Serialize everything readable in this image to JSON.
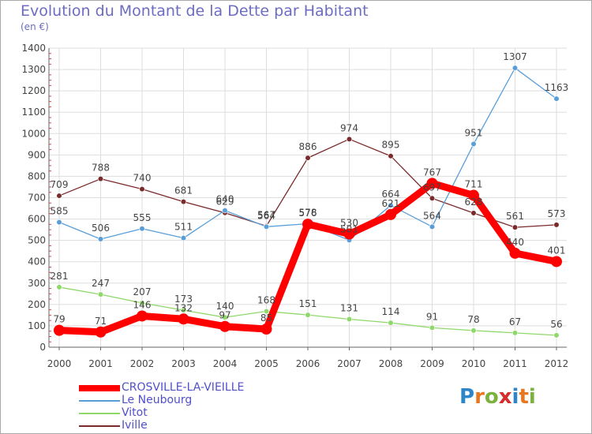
{
  "header": {
    "title": "Evolution du Montant de la Dette par Habitant",
    "subtitle": "(en €)"
  },
  "brand": {
    "letters": [
      "P",
      "r",
      "o",
      "x",
      "i",
      "t",
      "i"
    ],
    "colors": [
      "#2e86c8",
      "#e87722",
      "#7bb13c",
      "#d62c2c",
      "#2e86c8",
      "#e87722",
      "#7bb13c"
    ]
  },
  "chart_data": {
    "type": "line",
    "title": "Evolution du Montant de la Dette par Habitant",
    "subtitle": "(en €)",
    "xlabel": "",
    "ylabel": "",
    "x": [
      "2000",
      "2001",
      "2002",
      "2003",
      "2004",
      "2005",
      "2006",
      "2007",
      "2008",
      "2009",
      "2010",
      "2011",
      "2012"
    ],
    "ylim": [
      0,
      1400
    ],
    "yticks": [
      "0",
      "100",
      "200",
      "300",
      "400",
      "500",
      "600",
      "700",
      "800",
      "900",
      "1000",
      "1100",
      "1200",
      "1300",
      "1400"
    ],
    "grid": true,
    "legend_position": "bottom-left",
    "series": [
      {
        "name": "Iville",
        "color": "#7a2a2a",
        "values": [
          709,
          788,
          740,
          681,
          629,
          567,
          886,
          974,
          895,
          697,
          628,
          561,
          573
        ],
        "labels": [
          "709",
          "788",
          "740",
          "681",
          "629",
          "567",
          "886",
          "974",
          "895",
          "697",
          "628",
          "561",
          "573"
        ]
      },
      {
        "name": "Vitot",
        "color": "#8fd86a",
        "values": [
          281,
          247,
          207,
          173,
          140,
          168,
          151,
          131,
          114,
          91,
          78,
          67,
          56
        ],
        "labels": [
          "281",
          "247",
          "207",
          "173",
          "140",
          "168",
          "151",
          "131",
          "114",
          "91",
          "78",
          "67",
          "56"
        ]
      },
      {
        "name": "Le Neubourg",
        "color": "#5a9ed8",
        "values": [
          585,
          506,
          555,
          511,
          640,
          564,
          578,
          501,
          664,
          564,
          951,
          1307,
          1163
        ],
        "labels": [
          "585",
          "506",
          "555",
          "511",
          "640",
          "564",
          "578",
          "501",
          "664",
          "564",
          "951",
          "1307",
          "1163"
        ]
      },
      {
        "name": "CROSVILLE-LA-VIEILLE",
        "color": "#ff0000",
        "values": [
          79,
          71,
          146,
          132,
          97,
          85,
          576,
          530,
          621,
          767,
          711,
          440,
          401
        ],
        "labels": [
          "79",
          "71",
          "146",
          "132",
          "97",
          "85",
          "576",
          "530",
          "621",
          "767",
          "711",
          "440",
          "401"
        ]
      }
    ],
    "legend": [
      {
        "name": "CROSVILLE-LA-VIEILLE",
        "color": "#ff0000",
        "text_color": "#5050c8"
      },
      {
        "name": "Le Neubourg",
        "color": "#5a9ed8",
        "text_color": "#5050c8"
      },
      {
        "name": "Vitot",
        "color": "#8fd86a",
        "text_color": "#5050c8"
      },
      {
        "name": "Iville",
        "color": "#7a2a2a",
        "text_color": "#5050c8"
      }
    ]
  }
}
